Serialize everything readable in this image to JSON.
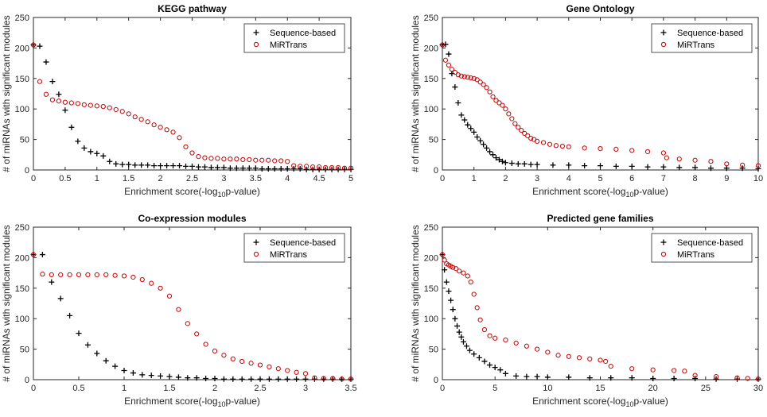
{
  "chart_data": [
    {
      "type": "scatter",
      "title": "KEGG pathway",
      "xlabel_prefix": "Enrichment score(-log",
      "xlabel_sub": "10",
      "xlabel_suffix": "p-value)",
      "ylabel": "# of miRNAs with significant modules",
      "xlim": [
        0,
        5
      ],
      "ylim": [
        0,
        250
      ],
      "xticks": [
        "0",
        "0.5",
        "1",
        "1.5",
        "2",
        "2.5",
        "3",
        "3.5",
        "4",
        "4.5",
        "5"
      ],
      "yticks": [
        "0",
        "50",
        "100",
        "150",
        "200",
        "250"
      ],
      "legend_position": "top-right",
      "series": [
        {
          "name": "Sequence-based",
          "marker": "plus",
          "color": "#000000",
          "x": [
            0,
            0.1,
            0.2,
            0.3,
            0.4,
            0.5,
            0.6,
            0.7,
            0.8,
            0.9,
            1.0,
            1.1,
            1.2,
            1.3,
            1.4,
            1.5,
            1.6,
            1.7,
            1.8,
            1.9,
            2.0,
            2.1,
            2.2,
            2.3,
            2.4,
            2.5,
            2.6,
            2.7,
            2.8,
            2.9,
            3.0,
            3.1,
            3.2,
            3.3,
            3.4,
            3.5,
            3.6,
            3.7,
            3.8,
            3.9,
            4.0,
            4.1,
            4.2,
            4.3,
            4.4,
            4.5,
            4.6,
            4.7,
            4.8,
            4.9,
            5.0
          ],
          "y": [
            205,
            203,
            177,
            145,
            124,
            98,
            70,
            47,
            36,
            30,
            27,
            23,
            14,
            10,
            9,
            9,
            8,
            8,
            8,
            7,
            7,
            7,
            7,
            7,
            6,
            6,
            5,
            5,
            4,
            4,
            4,
            3,
            3,
            3,
            3,
            3,
            2,
            2,
            2,
            2,
            2,
            2,
            2,
            1,
            1,
            1,
            1,
            1,
            1,
            1,
            1
          ]
        },
        {
          "name": "MiRTrans",
          "marker": "circle",
          "color": "#cc0000",
          "x": [
            0,
            0.1,
            0.2,
            0.3,
            0.4,
            0.5,
            0.6,
            0.7,
            0.8,
            0.9,
            1.0,
            1.1,
            1.2,
            1.3,
            1.4,
            1.5,
            1.6,
            1.7,
            1.8,
            1.9,
            2.0,
            2.1,
            2.2,
            2.3,
            2.4,
            2.5,
            2.6,
            2.7,
            2.8,
            2.9,
            3.0,
            3.1,
            3.2,
            3.3,
            3.4,
            3.5,
            3.6,
            3.7,
            3.8,
            3.9,
            4.0,
            4.1,
            4.2,
            4.3,
            4.4,
            4.5,
            4.6,
            4.7,
            4.8,
            4.9,
            5.0
          ],
          "y": [
            205,
            145,
            124,
            115,
            113,
            111,
            110,
            109,
            107,
            106,
            105,
            104,
            102,
            99,
            96,
            92,
            87,
            83,
            79,
            74,
            70,
            66,
            62,
            53,
            38,
            28,
            22,
            20,
            19,
            19,
            18,
            18,
            18,
            17,
            17,
            16,
            16,
            16,
            15,
            15,
            14,
            7,
            6,
            6,
            5,
            5,
            4,
            4,
            4,
            3,
            3
          ]
        }
      ]
    },
    {
      "type": "scatter",
      "title": "Gene Ontology",
      "xlabel_prefix": "Enrichment score(-log",
      "xlabel_sub": "10",
      "xlabel_suffix": "p-value)",
      "ylabel": "# of miRNAs with significant modules",
      "xlim": [
        0,
        10
      ],
      "ylim": [
        0,
        250
      ],
      "xticks": [
        "0",
        "1",
        "2",
        "3",
        "4",
        "5",
        "6",
        "7",
        "8",
        "9",
        "10"
      ],
      "yticks": [
        "0",
        "50",
        "100",
        "150",
        "200",
        "250"
      ],
      "legend_position": "top-right",
      "series": [
        {
          "name": "Sequence-based",
          "marker": "plus",
          "color": "#000000",
          "x": [
            0,
            0.1,
            0.2,
            0.3,
            0.4,
            0.5,
            0.6,
            0.7,
            0.8,
            0.9,
            1.0,
            1.1,
            1.2,
            1.3,
            1.4,
            1.5,
            1.6,
            1.7,
            1.8,
            1.9,
            2.0,
            2.2,
            2.4,
            2.6,
            2.8,
            3.0,
            3.5,
            4.0,
            4.5,
            5.0,
            5.5,
            6.0,
            6.5,
            7.0,
            7.5,
            8.0,
            8.5,
            9.0,
            9.5,
            10.0
          ],
          "y": [
            205,
            206,
            190,
            158,
            136,
            110,
            90,
            82,
            74,
            68,
            62,
            54,
            48,
            42,
            36,
            30,
            25,
            20,
            17,
            14,
            12,
            11,
            10,
            10,
            9,
            9,
            8,
            8,
            7,
            7,
            6,
            6,
            5,
            5,
            4,
            4,
            3,
            3,
            3,
            2
          ]
        },
        {
          "name": "MiRTrans",
          "marker": "circle",
          "color": "#cc0000",
          "x": [
            0,
            0.1,
            0.2,
            0.3,
            0.4,
            0.5,
            0.6,
            0.7,
            0.8,
            0.9,
            1.0,
            1.1,
            1.2,
            1.3,
            1.4,
            1.5,
            1.6,
            1.7,
            1.8,
            1.9,
            2.0,
            2.1,
            2.2,
            2.3,
            2.4,
            2.5,
            2.6,
            2.7,
            2.8,
            2.9,
            3.0,
            3.2,
            3.4,
            3.6,
            3.8,
            4.0,
            4.5,
            5.0,
            5.5,
            6.0,
            6.5,
            7.0,
            7.1,
            7.5,
            8.0,
            8.5,
            9.0,
            9.5,
            10.0
          ],
          "y": [
            205,
            180,
            172,
            165,
            160,
            156,
            154,
            153,
            152,
            151,
            150,
            148,
            144,
            140,
            135,
            128,
            120,
            114,
            110,
            106,
            100,
            92,
            84,
            76,
            70,
            65,
            60,
            56,
            52,
            50,
            47,
            45,
            42,
            40,
            39,
            38,
            36,
            35,
            34,
            32,
            30,
            28,
            20,
            18,
            16,
            14,
            10,
            8,
            7
          ]
        }
      ]
    },
    {
      "type": "scatter",
      "title": "Co-expression modules",
      "xlabel_prefix": "Enrichment score(-log",
      "xlabel_sub": "10",
      "xlabel_suffix": "p-value)",
      "ylabel": "# of miRNAs with significant modules",
      "xlim": [
        0,
        3.5
      ],
      "ylim": [
        0,
        250
      ],
      "xticks": [
        "0",
        "0.5",
        "1",
        "1.5",
        "2",
        "2.5",
        "3",
        "3.5"
      ],
      "yticks": [
        "0",
        "50",
        "100",
        "150",
        "200",
        "250"
      ],
      "legend_position": "top-right",
      "series": [
        {
          "name": "Sequence-based",
          "marker": "plus",
          "color": "#000000",
          "x": [
            0,
            0.1,
            0.2,
            0.3,
            0.4,
            0.5,
            0.6,
            0.7,
            0.8,
            0.9,
            1.0,
            1.1,
            1.2,
            1.3,
            1.4,
            1.5,
            1.6,
            1.7,
            1.8,
            1.9,
            2.0,
            2.1,
            2.2,
            2.3,
            2.4,
            2.5,
            2.6,
            2.7,
            2.8,
            2.9,
            3.0,
            3.1,
            3.2,
            3.3,
            3.4,
            3.5
          ],
          "y": [
            205,
            205,
            160,
            133,
            105,
            76,
            57,
            43,
            31,
            22,
            15,
            11,
            8,
            7,
            6,
            5,
            4,
            3,
            3,
            2,
            2,
            1,
            1,
            1,
            1,
            1,
            1,
            1,
            1,
            1,
            1,
            1,
            1,
            1,
            1,
            1
          ]
        },
        {
          "name": "MiRTrans",
          "marker": "circle",
          "color": "#cc0000",
          "x": [
            0,
            0.1,
            0.2,
            0.3,
            0.4,
            0.5,
            0.6,
            0.7,
            0.8,
            0.9,
            1.0,
            1.1,
            1.2,
            1.3,
            1.4,
            1.5,
            1.6,
            1.7,
            1.8,
            1.9,
            2.0,
            2.1,
            2.2,
            2.3,
            2.4,
            2.5,
            2.6,
            2.7,
            2.8,
            2.9,
            3.0,
            3.1,
            3.2,
            3.3,
            3.4,
            3.5
          ],
          "y": [
            205,
            173,
            172,
            172,
            172,
            172,
            172,
            172,
            172,
            171,
            170,
            168,
            164,
            158,
            150,
            137,
            115,
            92,
            75,
            58,
            47,
            40,
            34,
            30,
            27,
            24,
            21,
            18,
            15,
            12,
            10,
            3,
            2,
            2,
            1,
            1
          ]
        }
      ]
    },
    {
      "type": "scatter",
      "title": "Predicted gene families",
      "xlabel_prefix": "Enrichment score(-log",
      "xlabel_sub": "10",
      "xlabel_suffix": "p-value)",
      "ylabel": "# of miRNAs with significant modules",
      "xlim": [
        0,
        30
      ],
      "ylim": [
        0,
        250
      ],
      "xticks": [
        "0",
        "5",
        "10",
        "15",
        "20",
        "25",
        "30"
      ],
      "yticks": [
        "0",
        "50",
        "100",
        "150",
        "200",
        "250"
      ],
      "legend_position": "top-right",
      "series": [
        {
          "name": "Sequence-based",
          "marker": "plus",
          "color": "#000000",
          "x": [
            0,
            0.2,
            0.4,
            0.6,
            0.8,
            1.0,
            1.2,
            1.4,
            1.6,
            1.8,
            2.0,
            2.3,
            2.6,
            3.0,
            3.5,
            4.0,
            4.5,
            5.0,
            5.5,
            6.0,
            7.0,
            8.0,
            9.0,
            10.0,
            12.0,
            14.0,
            16.0,
            18.0,
            20.0,
            22.0,
            24.0,
            26.0,
            28.0,
            30.0
          ],
          "y": [
            205,
            180,
            160,
            145,
            130,
            115,
            100,
            88,
            78,
            70,
            62,
            55,
            48,
            42,
            36,
            30,
            24,
            20,
            16,
            10,
            6,
            5,
            5,
            4,
            4,
            3,
            3,
            3,
            2,
            2,
            2,
            1,
            1,
            1
          ]
        },
        {
          "name": "MiRTrans",
          "marker": "circle",
          "color": "#cc0000",
          "x": [
            0,
            0.2,
            0.4,
            0.6,
            0.8,
            1.0,
            1.3,
            1.6,
            2.0,
            2.4,
            2.7,
            3.0,
            3.3,
            3.6,
            4.0,
            4.5,
            5.0,
            6.0,
            7.0,
            8.0,
            9.0,
            10.0,
            11.0,
            12.0,
            13.0,
            14.0,
            15.0,
            15.5,
            16.0,
            18.0,
            20.0,
            22.0,
            23.0,
            24.0,
            26.0,
            28.0,
            29.0,
            30.0
          ],
          "y": [
            205,
            196,
            190,
            188,
            186,
            184,
            182,
            178,
            175,
            170,
            160,
            140,
            118,
            98,
            82,
            72,
            68,
            65,
            60,
            55,
            50,
            45,
            40,
            38,
            36,
            34,
            32,
            30,
            22,
            18,
            16,
            15,
            14,
            7,
            5,
            3,
            2,
            1
          ]
        }
      ]
    }
  ]
}
